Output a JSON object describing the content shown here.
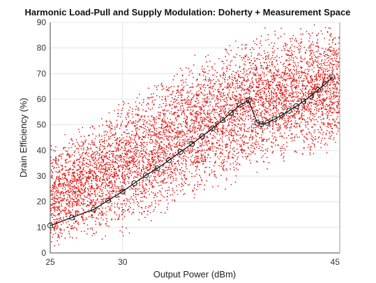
{
  "chart_data": {
    "type": "scatter",
    "title": "Harmonic Load-Pull and Supply Modulation: Doherty + Measurement Space",
    "xlabel": "Output Power (dBm)",
    "ylabel": "Drain Efficiency (%)",
    "xlim": [
      25,
      45
    ],
    "ylim": [
      0,
      90
    ],
    "x_ticks": [
      25,
      30,
      45
    ],
    "x_tick_labels": [
      "25",
      "30",
      "45"
    ],
    "y_ticks": [
      0,
      10,
      20,
      30,
      40,
      50,
      60,
      70,
      80,
      90
    ],
    "y_tick_labels": [
      "0",
      "10",
      "20",
      "30",
      "40",
      "50",
      "60",
      "70",
      "80",
      "90"
    ],
    "grid": true,
    "legend": "none",
    "series": [
      {
        "kind": "scatter",
        "color": "#e0201e",
        "count": 6500,
        "envelope_x": [
          25,
          30,
          35,
          40,
          45
        ],
        "envelope_lower": [
          3,
          7,
          20,
          33,
          40
        ],
        "envelope_upper": [
          42,
          60,
          77,
          88,
          90
        ]
      },
      {
        "kind": "line",
        "color": "#222222",
        "marker": "open-circle",
        "x": [
          25.0,
          26.5,
          28.0,
          29.0,
          30.0,
          30.8,
          31.6,
          32.4,
          33.2,
          34.0,
          34.8,
          35.5,
          36.2,
          36.9,
          37.5,
          38.1,
          38.7,
          39.3,
          39.6,
          40.0,
          40.5,
          41.0,
          41.5,
          42.0,
          42.5,
          43.0,
          43.5,
          44.0,
          44.5
        ],
        "y": [
          10.7,
          13.8,
          17.0,
          20.5,
          24.0,
          27.2,
          30.3,
          33.0,
          36.2,
          39.5,
          42.6,
          45.6,
          48.6,
          51.8,
          54.8,
          57.7,
          59.5,
          50.8,
          50.3,
          50.8,
          52.2,
          53.8,
          55.5,
          57.3,
          59.2,
          61.3,
          63.6,
          66.0,
          68.6
        ]
      }
    ]
  }
}
